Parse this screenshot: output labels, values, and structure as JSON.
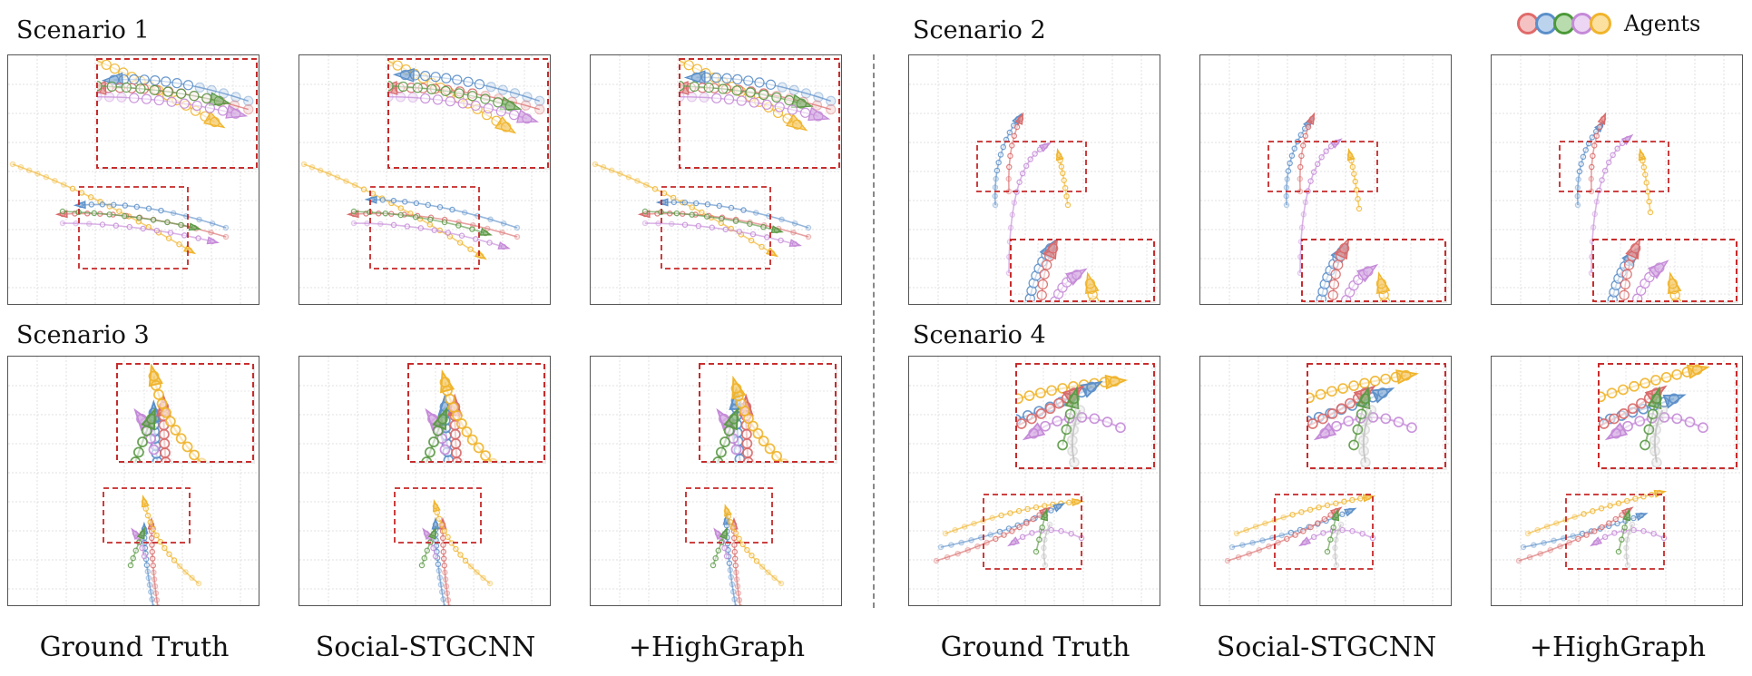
{
  "scenarios": [
    {
      "title": "Scenario 1"
    },
    {
      "title": "Scenario 2"
    },
    {
      "title": "Scenario 3"
    },
    {
      "title": "Scenario 4"
    }
  ],
  "columns": [
    "Ground Truth",
    "Social-STGCNN",
    "+HighGraph",
    "Ground Truth",
    "Social-STGCNN",
    "+HighGraph"
  ],
  "legend": {
    "label": "Agents",
    "colors": [
      "#e06a6a",
      "#5b8fc9",
      "#4c9a3a",
      "#c58ad8",
      "#f0b42c"
    ]
  },
  "agent_colors": {
    "red": "#d96a6a",
    "blue": "#5b8fc9",
    "green": "#5c9a46",
    "purple": "#c58ad8",
    "yellow": "#f0b42c",
    "gray": "#b9b9b9"
  },
  "zoom_box_color": "#c62828"
}
